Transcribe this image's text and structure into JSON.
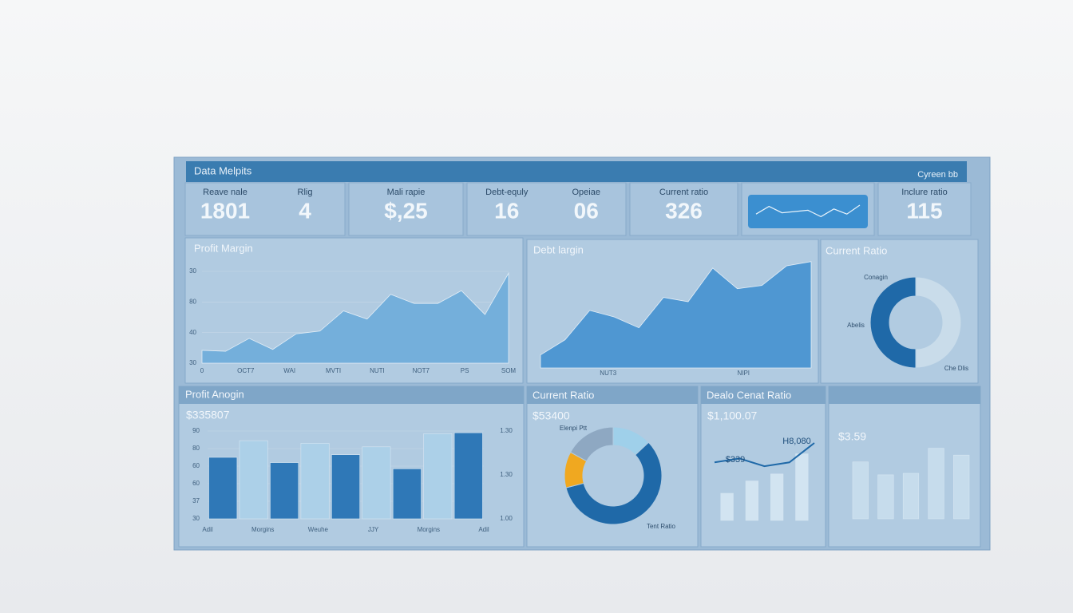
{
  "header": {
    "title": "Data Melpits",
    "action": "Cyreen bb"
  },
  "kpis": [
    {
      "items": [
        {
          "label": "Reave nale",
          "value": "1801"
        },
        {
          "label": "Rlig",
          "value": "4"
        }
      ]
    },
    {
      "items": [
        {
          "label": "Mali rapie",
          "value": "$,25"
        }
      ]
    },
    {
      "items": [
        {
          "label": "Debt-equly",
          "value": "16"
        },
        {
          "label": "Opeiae",
          "value": "06"
        }
      ]
    },
    {
      "items": [
        {
          "label": "Current ratio",
          "value": "326"
        }
      ]
    },
    {
      "chart": {
        "type": "line",
        "values": [
          40,
          70,
          45,
          50,
          55,
          30,
          60,
          40,
          75
        ],
        "color": "#e8f3fb",
        "ylim": [
          0,
          100
        ]
      }
    },
    {
      "items": [
        {
          "label": "Inclure ratio",
          "value": "115"
        }
      ]
    }
  ],
  "panels": [
    {
      "title": "Profit Margin",
      "chart": {
        "type": "area",
        "values": [
          14,
          13,
          27,
          15,
          32,
          35,
          57,
          48,
          75,
          65,
          65,
          79,
          53,
          98
        ],
        "color": "#74afdb",
        "ylim": [
          0,
          100
        ],
        "y_labels": [
          "30",
          "80",
          "40",
          "30"
        ],
        "x_labels": [
          "0",
          "OCT7",
          "WAI",
          "MVTI",
          "NUTI",
          "NOT7",
          "PS",
          "SOM"
        ]
      }
    },
    {
      "title": "Debt largin",
      "chart": {
        "type": "area",
        "values": [
          12,
          26,
          53,
          47,
          37,
          65,
          61,
          92,
          73,
          76,
          94,
          98
        ],
        "color": "#4f97d2",
        "ylim": [
          0,
          100
        ],
        "x_labels": [
          "NUT3",
          "NIPI"
        ]
      }
    },
    {
      "title": "Current Ratio",
      "chart": {
        "type": "donut",
        "values": [
          50,
          50
        ],
        "colors": [
          "#c9dcea",
          "#1f69a8"
        ],
        "annotations": [
          "Conagin",
          "Abelis",
          "Che Dlis"
        ]
      }
    },
    {
      "title": "Profit Anogin",
      "value": "$335807",
      "chart": {
        "type": "bar",
        "values": [
          70,
          89,
          64,
          86,
          73,
          82,
          57,
          97,
          98
        ],
        "colors": [
          "#2f78b7",
          "#acd0e8",
          "#2f78b7",
          "#acd0e8",
          "#2f78b7",
          "#acd0e8",
          "#2f78b7",
          "#acd0e8",
          "#2f78b7"
        ],
        "ylim": [
          0,
          100
        ],
        "y_labels": [
          "90",
          "80",
          "60",
          "60",
          "37",
          "30"
        ],
        "y2_labels": [
          "1.30",
          "1.30",
          "1.00"
        ],
        "x_labels": [
          "Adil",
          "Morgins",
          "Weuhe",
          "JJY",
          "Morgins",
          "Adil"
        ]
      }
    },
    {
      "title": "Current Ratio",
      "value": "$53400",
      "chart": {
        "type": "donut",
        "values": [
          13,
          58,
          12,
          17
        ],
        "colors": [
          "#9fd0ea",
          "#1f69a8",
          "#f0a820",
          "#8ea8c2"
        ],
        "annotations": [
          "Elenpi Ptt",
          "Tent Ratio"
        ]
      }
    },
    {
      "title": "Dealo Cenat Ratio",
      "value": "$1,100.07",
      "chart": {
        "type": "combo",
        "values": [
          35,
          51,
          60,
          86
        ],
        "color": "#d2e4f1",
        "line_values": [
          75,
          80,
          70,
          75,
          100
        ],
        "line_color": "#1f69a8",
        "ylim": [
          0,
          100
        ],
        "annotations": [
          "$339",
          "H8,080"
        ]
      }
    },
    {
      "value": "$3.59",
      "chart": {
        "type": "bar",
        "values": [
          75,
          58,
          60,
          93,
          84
        ],
        "colors": [
          "#c6dcec",
          "#c6dcec",
          "#c6dcec",
          "#c6dcec",
          "#c6dcec"
        ],
        "ylim": [
          0,
          100
        ]
      }
    }
  ]
}
